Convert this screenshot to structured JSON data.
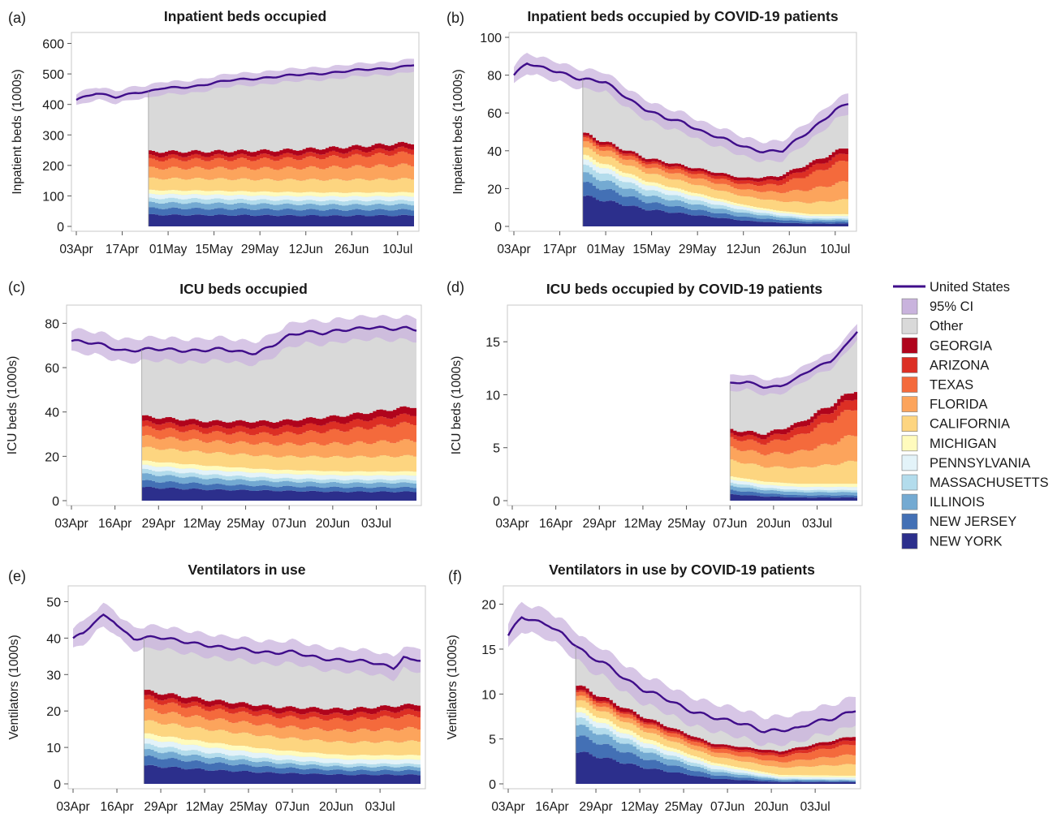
{
  "legend": {
    "items": [
      {
        "label": "United States",
        "kind": "line",
        "color": "#3f0d8a"
      },
      {
        "label": "95% CI",
        "kind": "box",
        "color": "#c9b3dd"
      },
      {
        "label": "Other",
        "kind": "box",
        "color": "#d9d9d9"
      },
      {
        "label": "GEORGIA",
        "kind": "box",
        "color": "#b0041c"
      },
      {
        "label": "ARIZONA",
        "kind": "box",
        "color": "#dc2f24"
      },
      {
        "label": "TEXAS",
        "kind": "box",
        "color": "#f46a3c"
      },
      {
        "label": "FLORIDA",
        "kind": "box",
        "color": "#fca45c"
      },
      {
        "label": "CALIFORNIA",
        "kind": "box",
        "color": "#fdd580"
      },
      {
        "label": "MICHIGAN",
        "kind": "box",
        "color": "#fffbbd"
      },
      {
        "label": "PENNSYLVANIA",
        "kind": "box",
        "color": "#e3f3f9"
      },
      {
        "label": "MASSACHUSETTS",
        "kind": "box",
        "color": "#b3dcec"
      },
      {
        "label": "ILLINOIS",
        "kind": "box",
        "color": "#74aad2"
      },
      {
        "label": "NEW JERSEY",
        "kind": "box",
        "color": "#4370b5"
      },
      {
        "label": "NEW YORK",
        "kind": "box",
        "color": "#2c2f8c"
      }
    ]
  },
  "chart_data": [
    {
      "panel": "(a)",
      "type": "area",
      "title": "Inpatient beds occupied",
      "ylabel": "Inpatient beds (1000s)",
      "xlabel": "",
      "ylim": [
        0,
        620
      ],
      "yticks": [
        0,
        100,
        200,
        300,
        400,
        500,
        600
      ],
      "xlim": [
        0,
        103
      ],
      "xticks": [
        {
          "d": 0,
          "label": "03Apr"
        },
        {
          "d": 14,
          "label": "17Apr"
        },
        {
          "d": 28,
          "label": "01May"
        },
        {
          "d": 42,
          "label": "15May"
        },
        {
          "d": 56,
          "label": "29May"
        },
        {
          "d": 70,
          "label": "12Jun"
        },
        {
          "d": 84,
          "label": "26Jun"
        },
        {
          "d": 98,
          "label": "10Jul"
        }
      ],
      "us_line": {
        "x": [
          0,
          6,
          12,
          18,
          22,
          26,
          30,
          36,
          42,
          48,
          54,
          60,
          66,
          72,
          78,
          84,
          90,
          96,
          100,
          103
        ],
        "y": [
          415,
          435,
          425,
          440,
          440,
          452,
          455,
          460,
          470,
          480,
          485,
          490,
          495,
          500,
          505,
          510,
          515,
          520,
          525,
          530
        ]
      },
      "ci_halfwidth": 20,
      "stack_start": 22,
      "states": {
        "x": [
          22,
          40,
          60,
          80,
          103
        ],
        "NEW YORK": [
          38,
          37,
          36,
          35,
          36
        ],
        "NEW JERSEY": [
          22,
          21,
          20,
          19,
          19
        ],
        "ILLINOIS": [
          18,
          18,
          17,
          17,
          17
        ],
        "MASSACHUSETTS": [
          14,
          14,
          13,
          13,
          13
        ],
        "PENNSYLVANIA": [
          14,
          14,
          14,
          14,
          14
        ],
        "MICHIGAN": [
          13,
          13,
          13,
          13,
          13
        ],
        "CALIFORNIA": [
          38,
          39,
          40,
          42,
          44
        ],
        "FLORIDA": [
          34,
          35,
          37,
          41,
          46
        ],
        "TEXAS": [
          27,
          28,
          30,
          34,
          40
        ],
        "ARIZONA": [
          13,
          13,
          14,
          15,
          16
        ],
        "GEORGIA": [
          14,
          14,
          15,
          16,
          17
        ]
      }
    },
    {
      "panel": "(b)",
      "type": "area",
      "title": "Inpatient beds occupied by COVID-19 patients",
      "ylabel": "Inpatient beds (1000s)",
      "xlabel": "",
      "ylim": [
        0,
        100
      ],
      "yticks": [
        0,
        20,
        40,
        60,
        80,
        100
      ],
      "xlim": [
        0,
        103
      ],
      "xticks": [
        {
          "d": 0,
          "label": "03Apr"
        },
        {
          "d": 14,
          "label": "17Apr"
        },
        {
          "d": 28,
          "label": "01May"
        },
        {
          "d": 42,
          "label": "15May"
        },
        {
          "d": 56,
          "label": "29May"
        },
        {
          "d": 70,
          "label": "12Jun"
        },
        {
          "d": 84,
          "label": "26Jun"
        },
        {
          "d": 98,
          "label": "10Jul"
        }
      ],
      "us_line": {
        "x": [
          0,
          4,
          8,
          14,
          20,
          24,
          28,
          34,
          40,
          46,
          52,
          58,
          64,
          70,
          76,
          82,
          86,
          90,
          94,
          98,
          102
        ],
        "y": [
          80,
          86,
          84,
          82,
          78,
          77,
          76,
          69,
          62,
          57,
          55,
          50,
          46,
          42,
          40,
          40,
          45,
          50,
          56,
          62,
          65
        ]
      },
      "ci_halfwidth": 5,
      "stack_start": 21,
      "states": {
        "x": [
          21,
          40,
          60,
          70,
          80,
          90,
          103
        ],
        "NEW YORK": [
          16,
          9,
          5,
          3,
          2,
          1.5,
          1.5
        ],
        "NEW JERSEY": [
          7,
          4,
          2.5,
          2,
          1.5,
          1,
          1
        ],
        "ILLINOIS": [
          5,
          3.5,
          2.5,
          2,
          1.5,
          1,
          1
        ],
        "MASSACHUSETTS": [
          4,
          3,
          2,
          1.5,
          1,
          0.8,
          0.7
        ],
        "PENNSYLVANIA": [
          3,
          2.5,
          2,
          1.6,
          1.4,
          1.2,
          1.3
        ],
        "MICHIGAN": [
          2.5,
          2,
          1.5,
          1.2,
          1,
          1,
          1
        ],
        "CALIFORNIA": [
          4,
          4.5,
          4.5,
          4.5,
          5,
          6,
          8
        ],
        "FLORIDA": [
          3,
          3,
          3.5,
          3.5,
          4.5,
          7,
          10
        ],
        "TEXAS": [
          2,
          2,
          2.5,
          2.8,
          4,
          8,
          12
        ],
        "ARIZONA": [
          1,
          1.2,
          1.5,
          1.8,
          2.5,
          3.5,
          4
        ],
        "GEORGIA": [
          1.5,
          1.5,
          1.5,
          1.6,
          2,
          2.5,
          3
        ]
      }
    },
    {
      "panel": "(c)",
      "type": "area",
      "title": "ICU beds occupied",
      "ylabel": "ICU beds (1000s)",
      "xlabel": "",
      "ylim": [
        0,
        86
      ],
      "yticks": [
        0,
        20,
        40,
        60,
        80
      ],
      "xlim": [
        0,
        103
      ],
      "xticks": [
        {
          "d": 0,
          "label": "03Apr"
        },
        {
          "d": 13,
          "label": "16Apr"
        },
        {
          "d": 26,
          "label": "29Apr"
        },
        {
          "d": 39,
          "label": "12May"
        },
        {
          "d": 52,
          "label": "25May"
        },
        {
          "d": 65,
          "label": "07Jun"
        },
        {
          "d": 78,
          "label": "20Jun"
        },
        {
          "d": 91,
          "label": "03Jul"
        }
      ],
      "us_line": {
        "x": [
          0,
          5,
          10,
          15,
          20,
          25,
          30,
          35,
          40,
          45,
          50,
          55,
          60,
          65,
          70,
          75,
          80,
          85,
          90,
          95,
          100,
          103
        ],
        "y": [
          72,
          71,
          70,
          68,
          68,
          68,
          68,
          68,
          68,
          68,
          67,
          67,
          70,
          74,
          76,
          76,
          77,
          77,
          78,
          78,
          78,
          77
        ]
      },
      "ci_halfwidth": 5,
      "stack_start": 21,
      "states": {
        "x": [
          21,
          40,
          60,
          80,
          103
        ],
        "NEW YORK": [
          6,
          5,
          4.5,
          4,
          4
        ],
        "NEW JERSEY": [
          3,
          2.5,
          2,
          2,
          2
        ],
        "ILLINOIS": [
          3,
          2.5,
          2.2,
          2,
          2
        ],
        "MASSACHUSETTS": [
          2,
          1.8,
          1.5,
          1.4,
          1.4
        ],
        "PENNSYLVANIA": [
          2,
          2,
          2,
          2,
          2
        ],
        "MICHIGAN": [
          2,
          2,
          1.8,
          1.8,
          1.8
        ],
        "CALIFORNIA": [
          6,
          6,
          6,
          6.5,
          7
        ],
        "FLORIDA": [
          5,
          5,
          5.5,
          6,
          7
        ],
        "TEXAS": [
          4,
          4,
          4.5,
          6,
          8
        ],
        "ARIZONA": [
          2.5,
          2.5,
          3,
          3.5,
          4
        ],
        "GEORGIA": [
          2.5,
          2.5,
          2.7,
          3,
          3.5
        ]
      }
    },
    {
      "panel": "(d)",
      "type": "area",
      "title": "ICU beds occupied by COVID-19 patients",
      "ylabel": "ICU beds (1000s)",
      "xlabel": "",
      "ylim": [
        0,
        18
      ],
      "yticks": [
        0,
        5,
        10,
        15
      ],
      "xlim": [
        0,
        103
      ],
      "xticks": [
        {
          "d": 0,
          "label": "03Apr"
        },
        {
          "d": 13,
          "label": "16Apr"
        },
        {
          "d": 26,
          "label": "29Apr"
        },
        {
          "d": 39,
          "label": "12May"
        },
        {
          "d": 52,
          "label": "25May"
        },
        {
          "d": 65,
          "label": "07Jun"
        },
        {
          "d": 78,
          "label": "20Jun"
        },
        {
          "d": 91,
          "label": "03Jul"
        }
      ],
      "us_line": {
        "x": [
          65,
          70,
          75,
          80,
          85,
          90,
          95,
          100,
          103
        ],
        "y": [
          11,
          11.2,
          10.8,
          10.8,
          11.5,
          12.5,
          13.2,
          14.8,
          16
        ]
      },
      "ci_halfwidth": 0.7,
      "stack_start": 65,
      "states": {
        "x": [
          65,
          75,
          85,
          95,
          103
        ],
        "NEW YORK": [
          0.6,
          0.4,
          0.3,
          0.3,
          0.3
        ],
        "NEW JERSEY": [
          0.4,
          0.3,
          0.2,
          0.2,
          0.2
        ],
        "ILLINOIS": [
          0.4,
          0.3,
          0.3,
          0.3,
          0.3
        ],
        "MASSACHUSETTS": [
          0.3,
          0.2,
          0.2,
          0.2,
          0.2
        ],
        "PENNSYLVANIA": [
          0.3,
          0.3,
          0.3,
          0.3,
          0.3
        ],
        "MICHIGAN": [
          0.3,
          0.3,
          0.3,
          0.3,
          0.3
        ],
        "CALIFORNIA": [
          1.5,
          1.4,
          1.5,
          1.8,
          2.2
        ],
        "FLORIDA": [
          1.2,
          1.2,
          1.5,
          2,
          2.6
        ],
        "TEXAS": [
          0.9,
          1,
          1.5,
          2.2,
          2.6
        ],
        "ARIZONA": [
          0.4,
          0.5,
          0.7,
          0.9,
          1
        ],
        "GEORGIA": [
          0.4,
          0.4,
          0.5,
          0.6,
          0.7
        ]
      }
    },
    {
      "panel": "(e)",
      "type": "area",
      "title": "Ventilators in use",
      "ylabel": "Ventilators (1000s)",
      "xlabel": "",
      "ylim": [
        0,
        53
      ],
      "yticks": [
        0,
        10,
        20,
        30,
        40,
        50
      ],
      "xlim": [
        0,
        103
      ],
      "xticks": [
        {
          "d": 0,
          "label": "03Apr"
        },
        {
          "d": 13,
          "label": "16Apr"
        },
        {
          "d": 26,
          "label": "29Apr"
        },
        {
          "d": 39,
          "label": "12May"
        },
        {
          "d": 52,
          "label": "25May"
        },
        {
          "d": 65,
          "label": "07Jun"
        },
        {
          "d": 78,
          "label": "20Jun"
        },
        {
          "d": 91,
          "label": "03Jul"
        }
      ],
      "us_line": {
        "x": [
          0,
          3,
          6,
          9,
          12,
          15,
          18,
          21,
          25,
          30,
          35,
          40,
          45,
          50,
          55,
          60,
          65,
          70,
          75,
          80,
          85,
          90,
          95,
          98,
          100,
          103
        ],
        "y": [
          40,
          41,
          44,
          46,
          45,
          42,
          40,
          40,
          40,
          39.5,
          39,
          38,
          37,
          37,
          36.5,
          36,
          36,
          35,
          34.5,
          34,
          33.5,
          33,
          32,
          35,
          34,
          34
        ]
      },
      "ci_halfwidth": 3,
      "stack_start": 21,
      "states": {
        "x": [
          21,
          40,
          60,
          80,
          103
        ],
        "NEW YORK": [
          5,
          3.8,
          3,
          2.5,
          2.5
        ],
        "NEW JERSEY": [
          2.5,
          2,
          1.5,
          1.2,
          1.2
        ],
        "ILLINOIS": [
          1.8,
          1.5,
          1.2,
          1,
          1
        ],
        "MASSACHUSETTS": [
          1.5,
          1.2,
          1,
          0.8,
          0.8
        ],
        "PENNSYLVANIA": [
          1.5,
          1.5,
          1.3,
          1.2,
          1.2
        ],
        "MICHIGAN": [
          1.5,
          1.4,
          1.3,
          1.2,
          1.2
        ],
        "CALIFORNIA": [
          3.5,
          3.5,
          3.5,
          3.5,
          3.8
        ],
        "FLORIDA": [
          3,
          3,
          3,
          3.2,
          3.6
        ],
        "TEXAS": [
          2.5,
          2.5,
          2.6,
          3,
          3.5
        ],
        "ARIZONA": [
          1.2,
          1.2,
          1.3,
          1.5,
          1.6
        ],
        "GEORGIA": [
          1.5,
          1.4,
          1.4,
          1.4,
          1.5
        ]
      }
    },
    {
      "panel": "(f)",
      "type": "area",
      "title": "Ventilators in use by COVID-19 patients",
      "ylabel": "Ventilators (1000s)",
      "xlabel": "",
      "ylim": [
        0,
        21.5
      ],
      "yticks": [
        0,
        5,
        10,
        15,
        20
      ],
      "xlim": [
        0,
        103
      ],
      "xticks": [
        {
          "d": 0,
          "label": "03Apr"
        },
        {
          "d": 13,
          "label": "16Apr"
        },
        {
          "d": 26,
          "label": "29Apr"
        },
        {
          "d": 39,
          "label": "12May"
        },
        {
          "d": 52,
          "label": "25May"
        },
        {
          "d": 65,
          "label": "07Jun"
        },
        {
          "d": 78,
          "label": "20Jun"
        },
        {
          "d": 91,
          "label": "03Jul"
        }
      ],
      "us_line": {
        "x": [
          0,
          4,
          8,
          12,
          16,
          20,
          24,
          28,
          34,
          40,
          46,
          52,
          58,
          64,
          70,
          76,
          82,
          86,
          90,
          94,
          98,
          103
        ],
        "y": [
          16.5,
          18.5,
          18,
          17.8,
          16.8,
          15.5,
          14,
          13.5,
          12,
          10.5,
          9.5,
          8.5,
          7.8,
          7,
          6.6,
          6,
          6,
          6,
          6.8,
          7.2,
          7.6,
          8.2
        ]
      },
      "ci_halfwidth": 1.5,
      "stack_start": 20,
      "states": {
        "x": [
          20,
          40,
          60,
          80,
          103
        ],
        "NEW YORK": [
          3.6,
          1.8,
          0.6,
          0.2,
          0.2
        ],
        "NEW JERSEY": [
          1.8,
          1,
          0.4,
          0.15,
          0.1
        ],
        "ILLINOIS": [
          1.2,
          0.8,
          0.4,
          0.15,
          0.1
        ],
        "MASSACHUSETTS": [
          0.8,
          0.5,
          0.3,
          0.1,
          0.1
        ],
        "PENNSYLVANIA": [
          0.6,
          0.5,
          0.4,
          0.2,
          0.2
        ],
        "MICHIGAN": [
          0.6,
          0.5,
          0.3,
          0.2,
          0.2
        ],
        "CALIFORNIA": [
          0.8,
          0.8,
          0.7,
          0.8,
          1.3
        ],
        "FLORIDA": [
          0.5,
          0.5,
          0.5,
          0.6,
          1.1
        ],
        "TEXAS": [
          0.4,
          0.4,
          0.4,
          0.6,
          1.2
        ],
        "ARIZONA": [
          0.2,
          0.2,
          0.2,
          0.3,
          0.5
        ],
        "GEORGIA": [
          0.5,
          0.4,
          0.3,
          0.3,
          0.4
        ]
      }
    }
  ]
}
